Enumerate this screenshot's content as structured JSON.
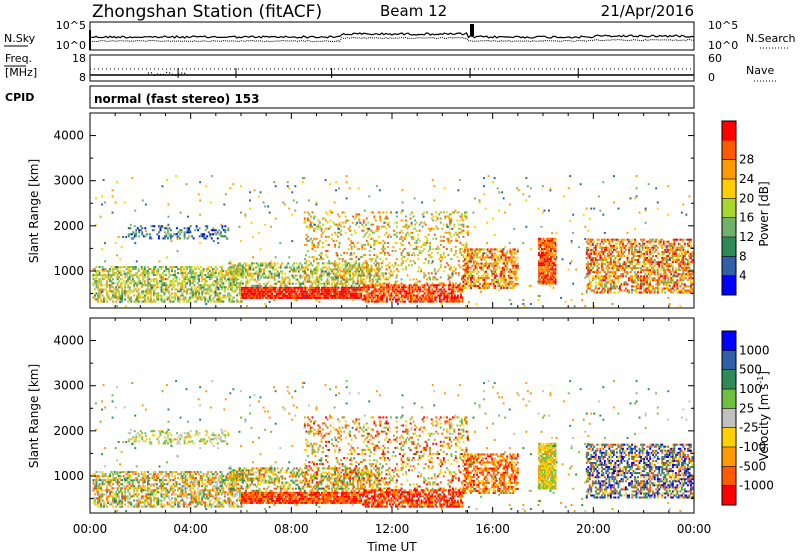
{
  "header": {
    "station": "Zhongshan Station (fitACF)",
    "beam": "Beam 12",
    "date": "21/Apr/2016"
  },
  "top_panels": {
    "nsky_label": "N.Sky",
    "nsky_ticks": [
      "10^5",
      "10^0"
    ],
    "nsearch_label": "N.Search",
    "nsearch_ticks": [
      "10^5",
      "10^0"
    ],
    "freq_label_1": "Freq.",
    "freq_label_2": "[MHz]",
    "freq_ticks": [
      "18",
      "8"
    ],
    "nave_label": "Nave",
    "nave_ticks": [
      "60",
      "0"
    ],
    "cpid_label": "CPID",
    "cpid_text": "normal (fast stereo) 153"
  },
  "colors": {
    "power_scale": [
      "#0000ff",
      "#3060a8",
      "#2e8b57",
      "#6fb06b",
      "#a9d62a",
      "#ffd000",
      "#ff9a00",
      "#ff5a00",
      "#ff0000"
    ],
    "velocity_scale": [
      "#ff0000",
      "#ff5a00",
      "#ff9a00",
      "#ffd000",
      "#c0c0c0",
      "#70c040",
      "#2e8b57",
      "#3060a8",
      "#0000ff"
    ]
  },
  "chart_data": [
    {
      "type": "heatmap",
      "name": "power",
      "ylabel": "Slant Range [km]",
      "ylim": [
        180,
        4500
      ],
      "yticks": [
        "1000",
        "2000",
        "3000",
        "4000"
      ],
      "ytick_values": [
        1000,
        2000,
        3000,
        4000
      ],
      "colorbar_label": "Power [dB]",
      "colorbar_ticks": [
        "4",
        "8",
        "12",
        "16",
        "20",
        "24",
        "28"
      ],
      "colorbar_range": [
        0,
        30
      ]
    },
    {
      "type": "heatmap",
      "name": "velocity",
      "ylabel": "Slant Range [km]",
      "ylim": [
        180,
        4500
      ],
      "yticks": [
        "1000",
        "2000",
        "3000",
        "4000"
      ],
      "ytick_values": [
        1000,
        2000,
        3000,
        4000
      ],
      "colorbar_label": "Velocity [m s",
      "colorbar_label_sup": "-1",
      "colorbar_label_end": "]",
      "colorbar_ticks": [
        "1000",
        "500",
        "100",
        "25",
        "-25",
        "-100",
        "-500",
        "-1000"
      ]
    }
  ],
  "time_axis": {
    "xlabel": "Time UT",
    "ticks": [
      "00:00",
      "04:00",
      "08:00",
      "12:00",
      "16:00",
      "20:00",
      "00:00"
    ],
    "tick_hours": [
      0,
      4,
      8,
      12,
      16,
      20,
      24
    ],
    "range_hours": [
      0,
      24
    ]
  }
}
